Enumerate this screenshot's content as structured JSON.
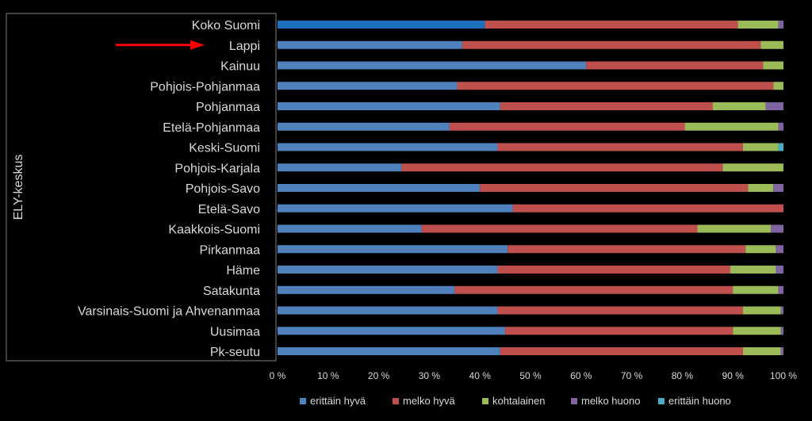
{
  "chart_data": {
    "type": "bar",
    "orientation": "horizontal",
    "stacked": "percent",
    "ylabel": "ELY-keskus",
    "categories": [
      "Koko Suomi",
      "Lappi",
      "Kainuu",
      "Pohjois-Pohjanmaa",
      "Pohjanmaa",
      "Etelä-Pohjanmaa",
      "Keski-Suomi",
      "Pohjois-Karjala",
      "Pohjois-Savo",
      "Etelä-Savo",
      "Kaakkois-Suomi",
      "Pirkanmaa",
      "Häme",
      "Satakunta",
      "Varsinais-Suomi ja Ahvenanmaa",
      "Uusimaa",
      "Pk-seutu"
    ],
    "series": [
      {
        "name": "erittäin hyvä",
        "color": "#4f81bd",
        "values": [
          41,
          36.5,
          61,
          35.5,
          44,
          34,
          43.5,
          24.5,
          40,
          46.5,
          28.5,
          45.5,
          43.5,
          35,
          43.5,
          45,
          44
        ]
      },
      {
        "name": "melko hyvä",
        "color": "#c0504d",
        "values": [
          50,
          59,
          35,
          62.5,
          42,
          46.5,
          48.5,
          63.5,
          53,
          53.5,
          54.5,
          47,
          46,
          55,
          48.5,
          45,
          48
        ]
      },
      {
        "name": "kohtalainen",
        "color": "#9bbb59",
        "values": [
          8,
          4.5,
          4,
          2,
          10.5,
          18.5,
          7,
          12,
          5,
          0,
          14.5,
          6,
          9,
          9,
          7.5,
          9.5,
          7.5
        ]
      },
      {
        "name": "melko huono",
        "color": "#8064a2",
        "values": [
          1,
          0,
          0,
          0,
          3.5,
          1,
          0,
          0,
          2,
          0,
          2.5,
          1.5,
          1.5,
          1,
          0.5,
          0.5,
          0.5
        ]
      },
      {
        "name": "erittäin huono",
        "color": "#4bacc6",
        "values": [
          0,
          0,
          0,
          0,
          0,
          0,
          1,
          0,
          0,
          0,
          0,
          0,
          0,
          0,
          0,
          0,
          0
        ]
      }
    ],
    "highlight_category": "Lappi",
    "first_segment_color_override": {
      "category": "Koko Suomi",
      "color": "#1f6fbf"
    },
    "xlim": [
      0,
      100
    ],
    "xticks": [
      "0 %",
      "10 %",
      "20 %",
      "30 %",
      "40 %",
      "50 %",
      "60 %",
      "70 %",
      "80 %",
      "90 %",
      "100 %"
    ],
    "legend_position": "bottom",
    "grid": false,
    "arrow_color": "#ff0000"
  }
}
